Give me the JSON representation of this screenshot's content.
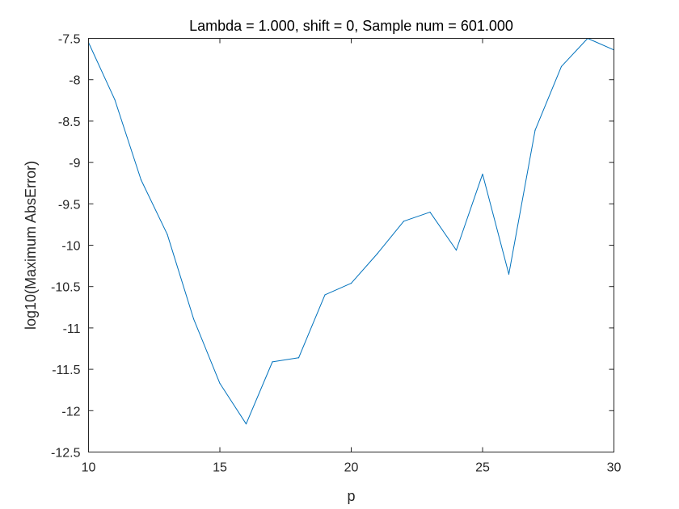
{
  "chart_data": {
    "type": "line",
    "title": "Lambda = 1.000, shift = 0, Sample num = 601.000",
    "xlabel": "p",
    "ylabel": "log10(Maximum AbsError)",
    "xlim": [
      10,
      30
    ],
    "ylim": [
      -12.5,
      -7.5
    ],
    "xticks": [
      10,
      15,
      20,
      25,
      30
    ],
    "xtick_labels": [
      "10",
      "15",
      "20",
      "25",
      "30"
    ],
    "yticks": [
      -7.5,
      -8,
      -8.5,
      -9,
      -9.5,
      -10,
      -10.5,
      -11,
      -11.5,
      -12,
      -12.5
    ],
    "ytick_labels": [
      "-7.5",
      "-8",
      "-8.5",
      "-9",
      "-9.5",
      "-10",
      "-10.5",
      "-11",
      "-11.5",
      "-12",
      "-12.5"
    ],
    "grid": false,
    "line_color": "#0072BD",
    "series": [
      {
        "x": [
          10,
          11,
          12,
          13,
          14,
          15,
          16,
          17,
          18,
          19,
          20,
          21,
          22,
          23,
          24,
          25,
          26,
          27,
          28,
          29,
          30
        ],
        "y": [
          -7.55,
          -8.24,
          -9.21,
          -9.87,
          -10.89,
          -11.67,
          -12.16,
          -11.41,
          -11.36,
          -10.6,
          -10.46,
          -10.1,
          -9.71,
          -9.6,
          -10.06,
          -9.14,
          -10.35,
          -8.61,
          -7.84,
          -7.5,
          -7.64
        ]
      }
    ]
  }
}
